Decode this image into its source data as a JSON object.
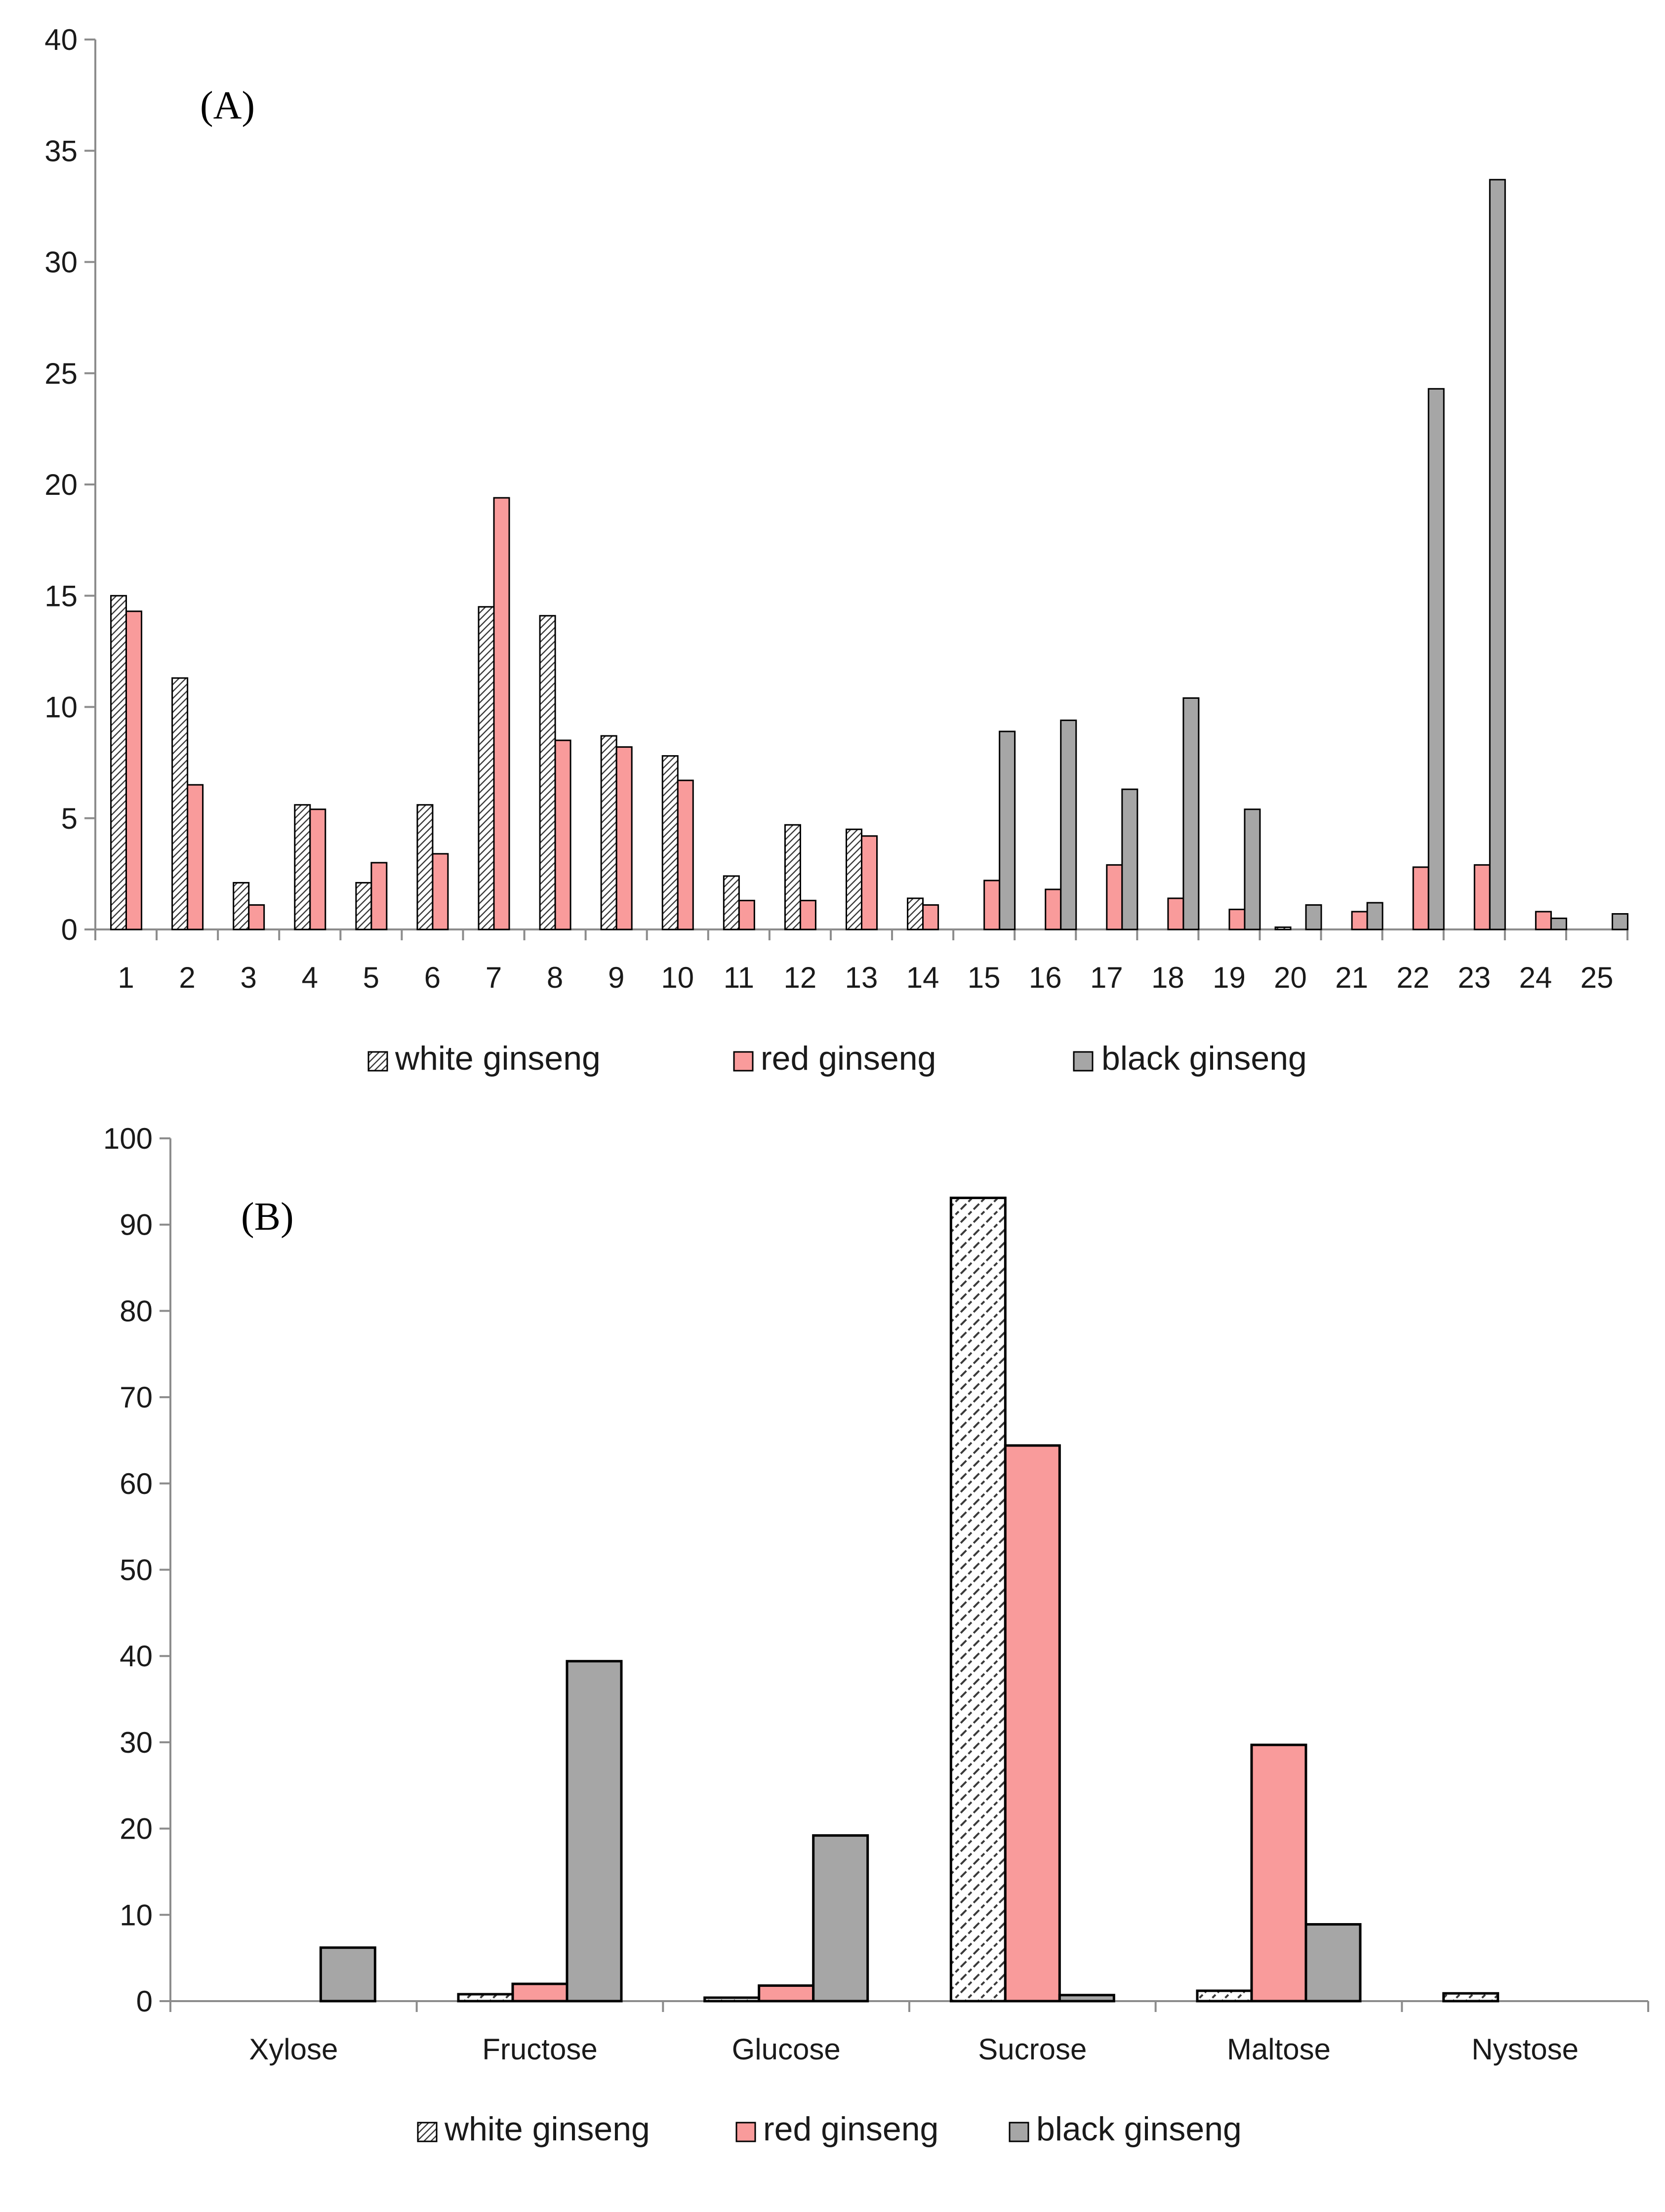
{
  "chart_data": [
    {
      "type": "bar",
      "panel_label": "(A)",
      "categories": [
        "1",
        "2",
        "3",
        "4",
        "5",
        "6",
        "7",
        "8",
        "9",
        "10",
        "11",
        "12",
        "13",
        "14",
        "15",
        "16",
        "17",
        "18",
        "19",
        "20",
        "21",
        "22",
        "23",
        "24",
        "25"
      ],
      "series": [
        {
          "name": "white ginseng",
          "values": [
            15.0,
            11.3,
            2.1,
            5.6,
            2.1,
            5.6,
            14.5,
            14.1,
            8.7,
            7.8,
            2.4,
            4.7,
            4.5,
            1.4,
            0,
            0,
            0,
            0,
            0,
            0.1,
            0,
            0,
            0,
            0,
            0
          ]
        },
        {
          "name": "red ginseng",
          "values": [
            14.3,
            6.5,
            1.1,
            5.4,
            3.0,
            3.4,
            19.4,
            8.5,
            8.2,
            6.7,
            1.3,
            1.3,
            4.2,
            1.1,
            2.2,
            1.8,
            2.9,
            1.4,
            0.9,
            0,
            0.8,
            2.8,
            2.9,
            0.8,
            0
          ]
        },
        {
          "name": "black ginseng",
          "values": [
            0,
            0,
            0,
            0,
            0,
            0,
            0,
            0,
            0,
            0,
            0,
            0,
            0,
            0,
            8.9,
            9.4,
            6.3,
            10.4,
            5.4,
            1.1,
            1.2,
            24.3,
            33.7,
            0.5,
            0.7
          ]
        }
      ],
      "ylim": [
        0,
        40
      ],
      "yticks": [
        0,
        5,
        10,
        15,
        20,
        25,
        30,
        35,
        40
      ],
      "xlabel": "",
      "ylabel": "",
      "legend_position": "bottom"
    },
    {
      "type": "bar",
      "panel_label": "(B)",
      "categories": [
        "Xylose",
        "Fructose",
        "Glucose",
        "Sucrose",
        "Maltose",
        "Nystose"
      ],
      "series": [
        {
          "name": "white ginseng",
          "values": [
            0,
            0.8,
            0.4,
            93.1,
            1.2,
            0.9
          ]
        },
        {
          "name": "red ginseng",
          "values": [
            0,
            2.0,
            1.8,
            64.4,
            29.7,
            0
          ]
        },
        {
          "name": "black ginseng",
          "values": [
            6.2,
            39.4,
            19.2,
            0.7,
            8.9,
            0
          ]
        }
      ],
      "ylim": [
        0,
        100
      ],
      "yticks": [
        0,
        10,
        20,
        30,
        40,
        50,
        60,
        70,
        80,
        90,
        100
      ],
      "xlabel": "",
      "ylabel": "",
      "legend_position": "bottom"
    }
  ],
  "colors": {
    "white_fill": "#ffffff",
    "white_hatch": "#3a3a3a",
    "red": "#f99b9b",
    "black": "#a6a6a6",
    "axis": "#8c8c8c",
    "outline": "#000000"
  }
}
